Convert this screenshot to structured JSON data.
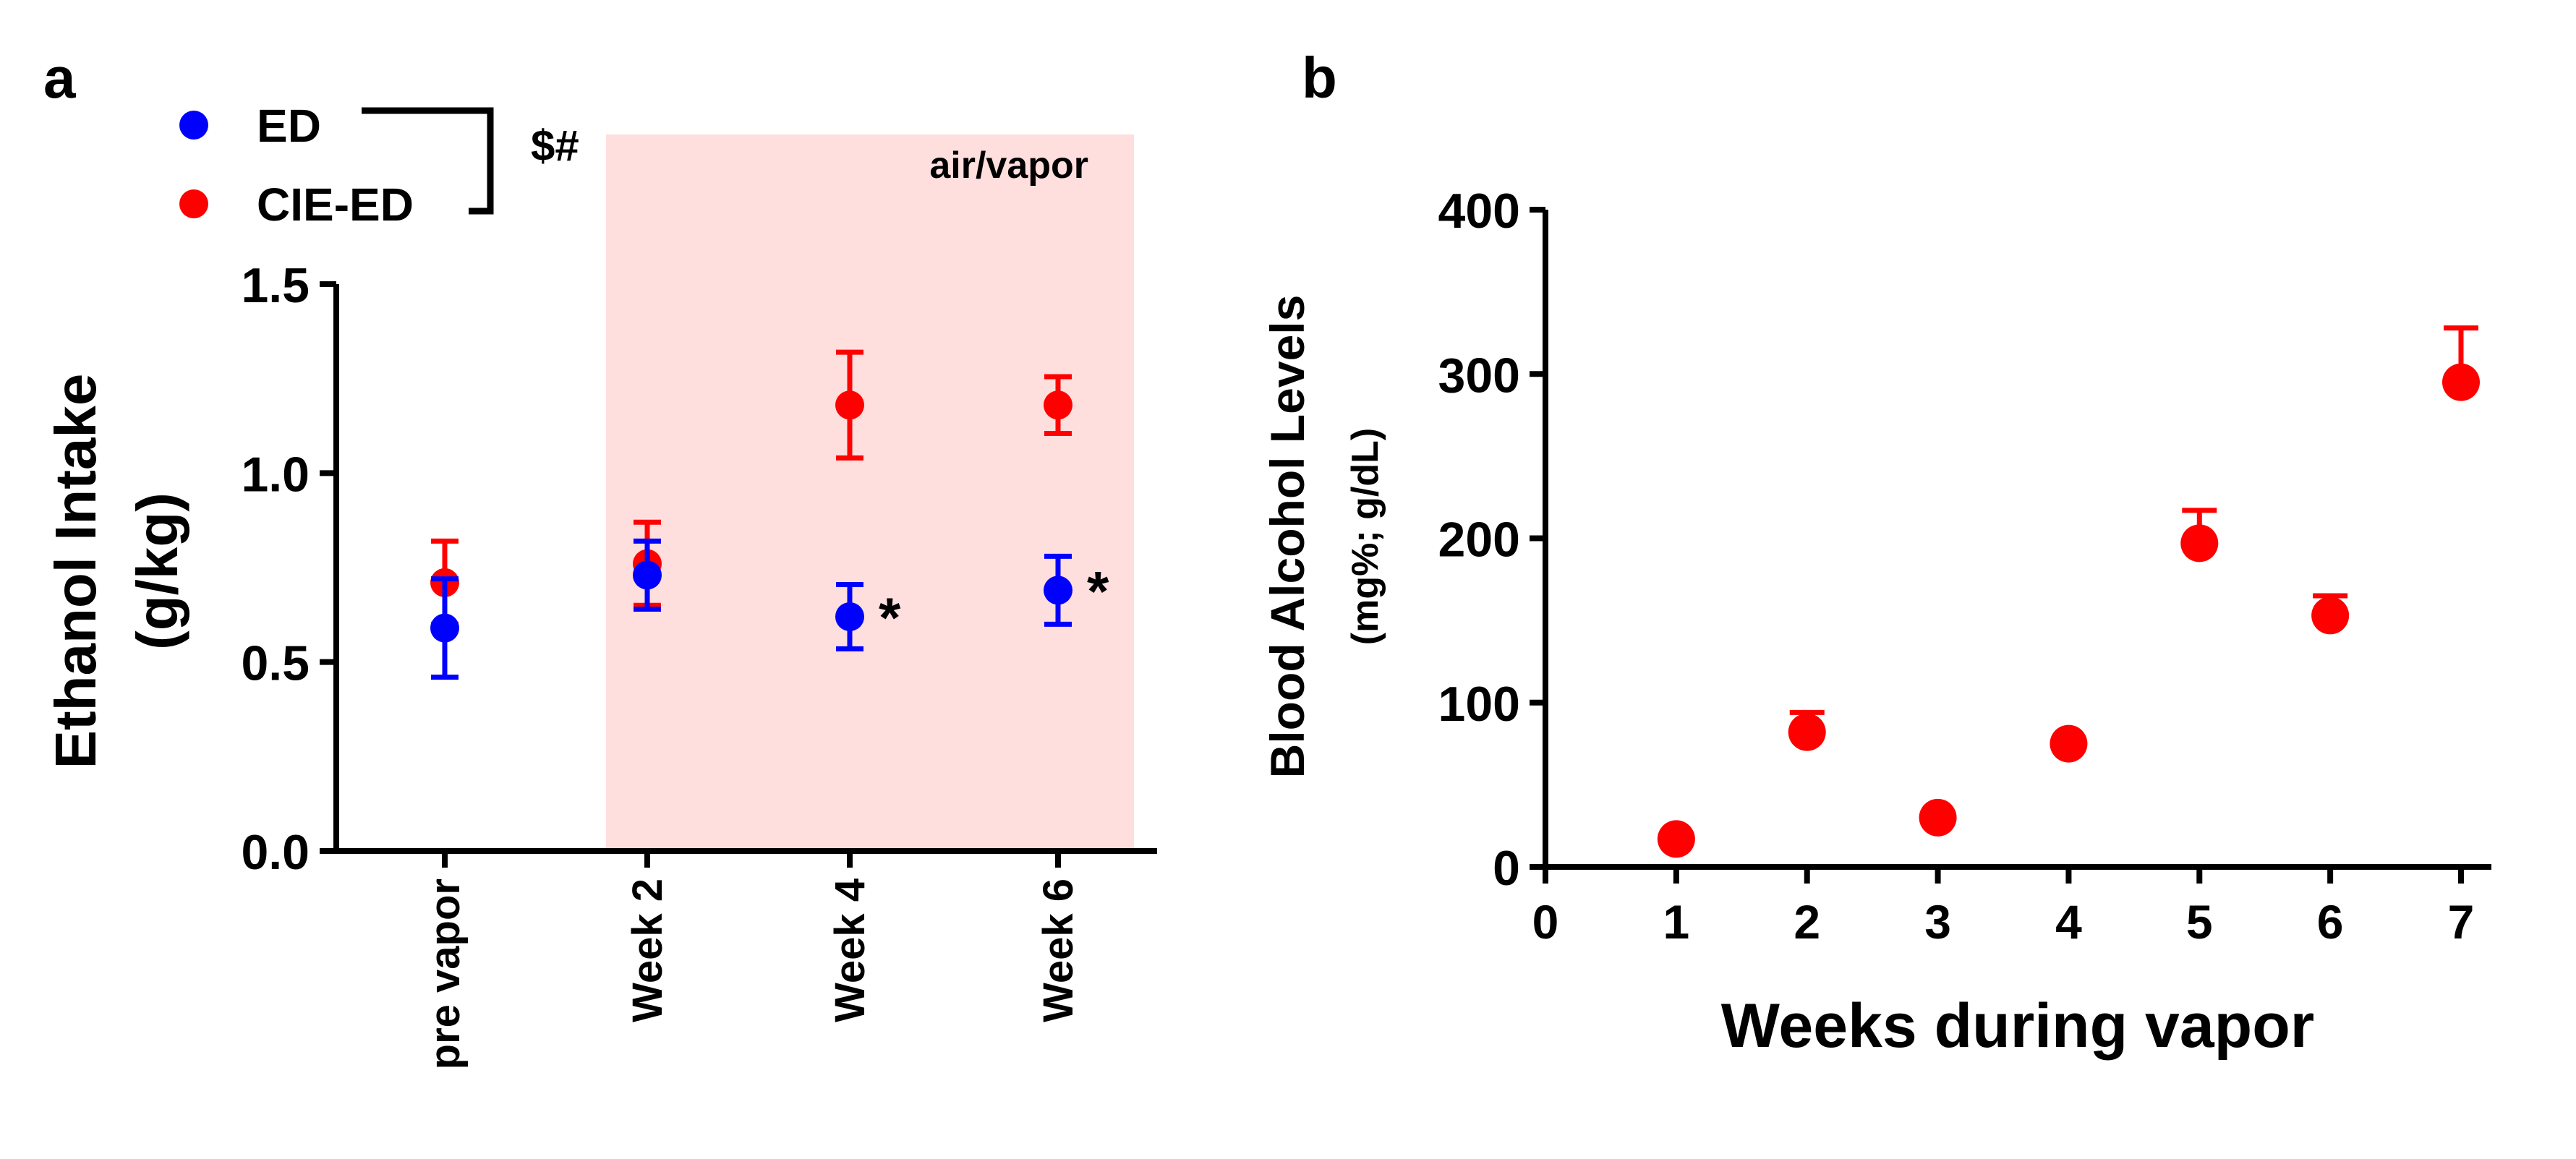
{
  "colors": {
    "ed": "#0000ff",
    "cie_ed": "#ff0000",
    "shade": "#ffdede",
    "axis": "#000000"
  },
  "chart_data": [
    {
      "type": "scatter",
      "panel_label": "a",
      "ylabel_line1": "Ethanol Intake",
      "ylabel_line2": "(g/kg)",
      "xlabel": "",
      "ylim": [
        0,
        1.5
      ],
      "yticks": [
        "0.0",
        "0.5",
        "1.0",
        "1.5"
      ],
      "categories": [
        "pre vapor",
        "Week 2",
        "Week 4",
        "Week 6"
      ],
      "shaded_region_label": "air/vapor",
      "significance_bracket": "$#",
      "series": [
        {
          "name": "ED",
          "color": "#0000ff",
          "values": [
            0.59,
            0.73,
            0.62,
            0.69
          ],
          "errors": [
            0.13,
            0.09,
            0.085,
            0.09
          ]
        },
        {
          "name": "CIE-ED",
          "color": "#ff0000",
          "values": [
            0.71,
            0.76,
            1.18,
            1.18
          ],
          "errors": [
            0.11,
            0.11,
            0.14,
            0.075
          ]
        }
      ],
      "annotations": [
        {
          "category": "Week 4",
          "text": "*"
        },
        {
          "category": "Week 6",
          "text": "*"
        }
      ]
    },
    {
      "type": "scatter",
      "panel_label": "b",
      "ylabel_line1": "Blood Alcohol Levels",
      "ylabel_line2": "(mg%; g/dL)",
      "xlabel": "Weeks during vapor",
      "xlim": [
        0,
        7
      ],
      "ylim": [
        0,
        400
      ],
      "xticks": [
        "0",
        "1",
        "2",
        "3",
        "4",
        "5",
        "6",
        "7"
      ],
      "yticks": [
        "0",
        "100",
        "200",
        "300",
        "400"
      ],
      "series": [
        {
          "name": "CIE-ED",
          "color": "#ff0000",
          "x": [
            1,
            2,
            3,
            4,
            5,
            6,
            7
          ],
          "values": [
            17,
            82,
            30,
            75,
            197,
            153,
            295
          ],
          "errors": [
            0,
            12,
            0,
            0,
            20,
            12,
            33
          ]
        }
      ]
    }
  ]
}
